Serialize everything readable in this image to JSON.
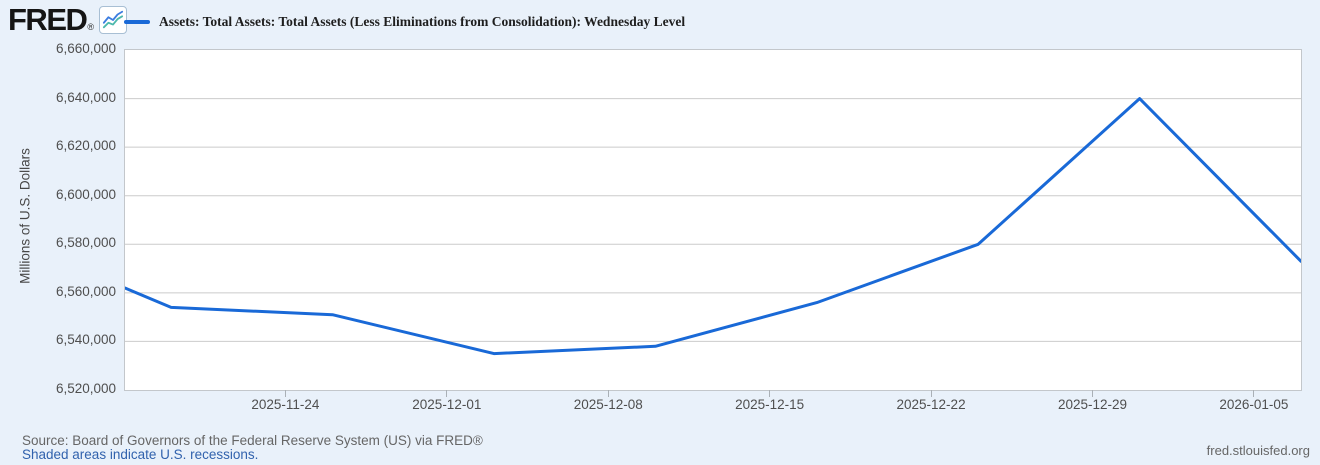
{
  "page": {
    "background": "#e9f1fa"
  },
  "header": {
    "logo": {
      "text": "FRED",
      "registered": "®",
      "icon": "line-chart-icon"
    },
    "legend": {
      "series_color": "#1969d7",
      "label": "Assets: Total Assets: Total Assets (Less Eliminations from Consolidation): Wednesday Level"
    }
  },
  "chart_data": {
    "type": "line",
    "title": "Assets: Total Assets: Total Assets (Less Eliminations from Consolidation): Wednesday Level",
    "ylabel": "Millions of U.S. Dollars",
    "xlabel": "",
    "ylim": [
      6520000,
      6660000
    ],
    "x_domain": [
      "2025-11-17",
      "2026-01-07"
    ],
    "grid": "horizontal",
    "legend_position": "top-left",
    "line_color": "#1969d7",
    "gridline_color": "#cbcbcb",
    "y_ticks": [
      6660000,
      6640000,
      6620000,
      6600000,
      6580000,
      6560000,
      6540000,
      6520000
    ],
    "y_tick_labels": [
      "6,660,000",
      "6,640,000",
      "6,620,000",
      "6,600,000",
      "6,580,000",
      "6,560,000",
      "6,540,000",
      "6,520,000"
    ],
    "x_tick_labels": [
      "2025-11-24",
      "2025-12-01",
      "2025-12-08",
      "2025-12-15",
      "2025-12-22",
      "2025-12-29",
      "2026-01-05"
    ],
    "series": [
      {
        "name": "Assets: Total Assets: Total Assets (Less Eliminations from Consolidation): Wednesday Level",
        "points": [
          {
            "date": "left-edge",
            "value": 6562000
          },
          {
            "date": "2025-11-19",
            "value": 6554000
          },
          {
            "date": "2025-11-26",
            "value": 6551000
          },
          {
            "date": "2025-12-03",
            "value": 6535000
          },
          {
            "date": "2025-12-10",
            "value": 6538000
          },
          {
            "date": "2025-12-17",
            "value": 6556000
          },
          {
            "date": "2025-12-24",
            "value": 6580000
          },
          {
            "date": "2025-12-31",
            "value": 6640000
          },
          {
            "date": "2026-01-07",
            "value": 6573000
          }
        ]
      }
    ]
  },
  "footer": {
    "source": "Source: Board of Governors of the Federal Reserve System (US) via FRED®",
    "recession_note": "Shaded areas indicate U.S. recessions.",
    "site": "fred.stlouisfed.org"
  },
  "colors": {
    "background": "#e9f1fa",
    "plot_background": "#ffffff",
    "plot_border": "#c3c7cb",
    "tick_label": "#4f4f4f",
    "footer_text": "#666666",
    "link": "#3162ad",
    "logo_icon_blue": "#3d7de0",
    "logo_icon_teal": "#4cb8ac"
  }
}
